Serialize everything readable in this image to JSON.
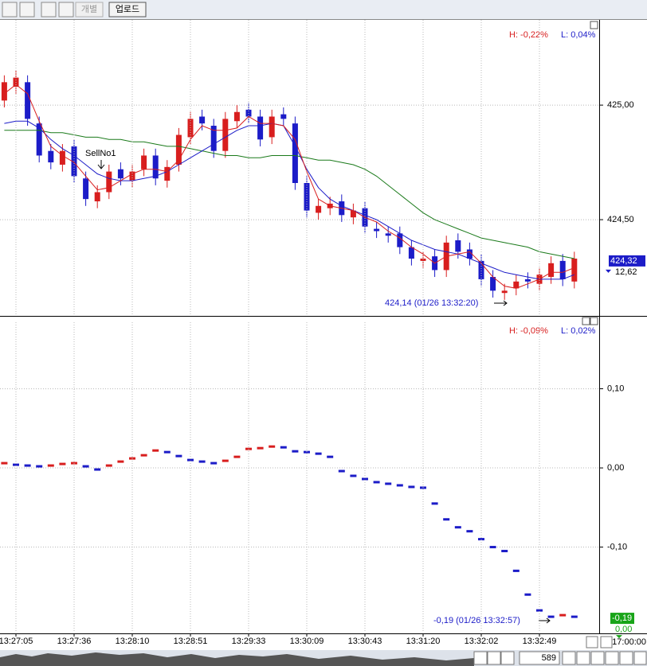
{
  "toolbar": {
    "buttons": [
      "개별",
      "업로드"
    ]
  },
  "footer": {
    "bar_count": 589,
    "end_time": "17:00:00"
  },
  "chart_data": [
    {
      "type": "candlestick",
      "header_high": "H: -0,22%",
      "header_low": "L: 0,04%",
      "marker_label": "SellNo1",
      "low_note": "424,14 (01/26 13:32:20)",
      "last_price": {
        "value": 424.32,
        "label": "424,32"
      },
      "side_text": "12,62",
      "up_color": "#d81e1e",
      "down_color": "#1c1cc8",
      "ylim": [
        424.08,
        425.372
      ],
      "yticks": [
        {
          "value": 424.5,
          "label": "424,50"
        },
        {
          "value": 425,
          "label": "425,00"
        }
      ],
      "grid": true,
      "open": [
        425.02,
        425.08,
        425.1,
        424.92,
        424.8,
        424.74,
        424.82,
        424.68,
        424.58,
        424.62,
        424.72,
        424.67,
        424.72,
        424.78,
        424.67,
        424.74,
        424.86,
        424.95,
        424.91,
        424.8,
        424.93,
        424.98,
        424.95,
        424.86,
        424.96,
        424.92,
        424.66,
        424.53,
        424.55,
        424.58,
        424.51,
        424.55,
        424.46,
        424.44,
        424.44,
        424.38,
        424.32,
        424.34,
        424.28,
        424.41,
        424.37,
        424.32,
        424.25,
        424.18,
        424.2,
        424.24,
        424.22,
        424.25,
        424.32,
        424.23
      ],
      "high": [
        425.13,
        425.15,
        425.13,
        424.95,
        424.83,
        424.83,
        424.85,
        424.71,
        424.65,
        424.74,
        424.75,
        424.74,
        424.81,
        424.81,
        424.76,
        424.9,
        424.97,
        424.98,
        424.94,
        424.97,
        425.0,
        425.01,
        424.98,
        424.98,
        424.99,
        424.95,
        424.69,
        424.59,
        424.6,
        424.61,
        424.57,
        424.58,
        424.49,
        424.47,
        424.47,
        424.41,
        424.36,
        424.37,
        424.43,
        424.44,
        424.4,
        424.35,
        424.28,
        424.22,
        424.26,
        424.27,
        424.29,
        424.34,
        424.35,
        424.36
      ],
      "low": [
        424.99,
        425.05,
        424.91,
        424.75,
        424.72,
        424.71,
        424.66,
        424.56,
        424.55,
        424.59,
        424.65,
        424.64,
        424.69,
        424.65,
        424.64,
        424.71,
        424.83,
        424.89,
        424.77,
        424.77,
        424.9,
        424.92,
        424.82,
        424.83,
        424.91,
        424.63,
        424.51,
        424.5,
        424.52,
        424.49,
        424.48,
        424.44,
        424.42,
        424.4,
        424.35,
        424.3,
        424.29,
        424.25,
        424.25,
        424.33,
        424.3,
        424.21,
        424.16,
        424.15,
        424.17,
        424.2,
        424.19,
        424.22,
        424.21,
        424.2
      ],
      "close": [
        425.1,
        425.12,
        424.94,
        424.78,
        424.75,
        424.8,
        424.69,
        424.59,
        424.62,
        424.71,
        424.68,
        424.71,
        424.78,
        424.68,
        424.73,
        424.87,
        424.94,
        424.92,
        424.8,
        424.94,
        424.97,
        424.95,
        424.85,
        424.95,
        424.94,
        424.66,
        424.54,
        424.56,
        424.57,
        424.52,
        424.54,
        424.47,
        424.45,
        424.43,
        424.38,
        424.33,
        424.33,
        424.28,
        424.4,
        424.36,
        424.33,
        424.24,
        424.19,
        424.19,
        424.23,
        424.23,
        424.26,
        424.31,
        424.24,
        424.33
      ],
      "series": [
        {
          "color": "#1a7a1a",
          "values": [
            424.89,
            424.89,
            424.89,
            424.89,
            424.88,
            424.88,
            424.87,
            424.86,
            424.86,
            424.85,
            424.85,
            424.84,
            424.84,
            424.83,
            424.82,
            424.82,
            424.81,
            424.8,
            424.79,
            424.78,
            424.78,
            424.77,
            424.77,
            424.78,
            424.78,
            424.78,
            424.77,
            424.76,
            424.76,
            424.75,
            424.74,
            424.72,
            424.69,
            424.65,
            424.61,
            424.57,
            424.53,
            424.5,
            424.48,
            424.46,
            424.44,
            424.42,
            424.41,
            424.4,
            424.39,
            424.38,
            424.36,
            424.35,
            424.34,
            424.33
          ]
        },
        {
          "color": "#1c1cc8",
          "values": [
            424.92,
            424.93,
            424.93,
            424.9,
            424.85,
            424.81,
            424.78,
            424.74,
            424.7,
            424.68,
            424.67,
            424.67,
            424.68,
            424.69,
            424.71,
            424.74,
            424.77,
            424.8,
            424.83,
            424.86,
            424.89,
            424.91,
            424.91,
            424.92,
            424.91,
            424.82,
            424.72,
            424.64,
            424.59,
            424.56,
            424.54,
            424.52,
            424.5,
            424.47,
            424.44,
            424.41,
            424.39,
            424.37,
            424.36,
            424.35,
            424.33,
            424.31,
            424.29,
            424.27,
            424.26,
            424.25,
            424.24,
            424.24,
            424.24,
            424.26
          ]
        },
        {
          "color": "#d81e1e",
          "values": [
            425.05,
            425.09,
            425.05,
            424.93,
            424.82,
            424.78,
            424.75,
            424.69,
            424.63,
            424.64,
            424.67,
            424.7,
            424.72,
            424.72,
            424.71,
            424.76,
            424.85,
            424.91,
            424.89,
            424.89,
            424.9,
            424.95,
            424.92,
            424.92,
            424.91,
            424.85,
            424.71,
            424.59,
            424.56,
            424.55,
            424.54,
            424.51,
            424.49,
            424.45,
            424.42,
            424.38,
            424.35,
            424.31,
            424.34,
            424.35,
            424.36,
            424.31,
            424.25,
            424.21,
            424.2,
            424.22,
            424.24,
            424.27,
            424.27,
            424.29
          ]
        }
      ]
    },
    {
      "type": "dash",
      "header_high": "H: -0,09%",
      "header_low": "L: 0,02%",
      "low_note": "-0,19 (01/26 13:32:57)",
      "last_value": {
        "value": -0.19,
        "label": "-0,19"
      },
      "zero_label": {
        "value": 0,
        "label": "0,00"
      },
      "up_color": "#d81e1e",
      "down_color": "#1c1cc8",
      "ylim": [
        -0.208,
        0.184
      ],
      "yticks": [
        {
          "value": -0.1,
          "label": "-0,10"
        },
        {
          "value": 0,
          "label": "0,00"
        },
        {
          "value": 0.1,
          "label": "0,10"
        }
      ],
      "grid": true,
      "categories": [
        null,
        "13:27:05",
        null,
        null,
        null,
        null,
        "13:27:36",
        null,
        null,
        null,
        null,
        "13:28:10",
        null,
        null,
        null,
        null,
        "13:28:51",
        null,
        null,
        null,
        null,
        "13:29:33",
        null,
        null,
        null,
        null,
        "13:30:09",
        null,
        null,
        null,
        null,
        "13:30:43",
        null,
        null,
        null,
        null,
        "13:31:20",
        null,
        null,
        null,
        null,
        "13:32:02",
        null,
        null,
        null,
        null,
        "13:32:49",
        null,
        null,
        null
      ],
      "values": [
        0.006,
        0.004,
        0.003,
        0.002,
        0.003,
        0.005,
        0.006,
        0.002,
        -0.002,
        0.003,
        0.008,
        0.012,
        0.016,
        0.022,
        0.02,
        0.015,
        0.01,
        0.008,
        0.006,
        0.009,
        0.014,
        0.024,
        0.025,
        0.027,
        0.026,
        0.021,
        0.02,
        0.018,
        0.014,
        -0.004,
        -0.01,
        -0.014,
        -0.018,
        -0.02,
        -0.022,
        -0.024,
        -0.025,
        -0.045,
        -0.065,
        -0.075,
        -0.08,
        -0.09,
        -0.1,
        -0.105,
        -0.13,
        -0.16,
        -0.18,
        -0.188,
        -0.186,
        -0.188
      ]
    }
  ]
}
